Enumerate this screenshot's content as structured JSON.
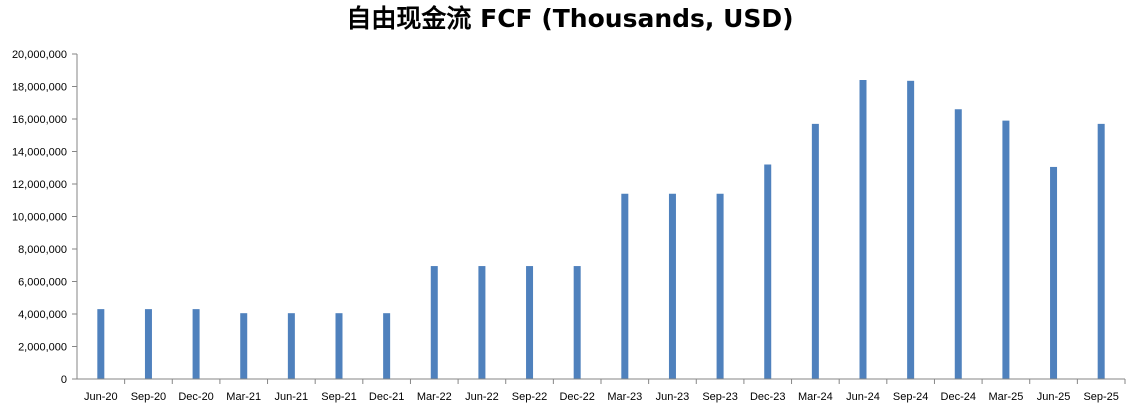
{
  "chart_data": {
    "type": "bar",
    "title": "自由现金流 FCF (Thousands, USD)",
    "xlabel": "",
    "ylabel": "",
    "categories": [
      "Jun-20",
      "Sep-20",
      "Dec-20",
      "Mar-21",
      "Jun-21",
      "Sep-21",
      "Dec-21",
      "Mar-22",
      "Jun-22",
      "Sep-22",
      "Dec-22",
      "Mar-23",
      "Jun-23",
      "Sep-23",
      "Dec-23",
      "Mar-24",
      "Jun-24",
      "Sep-24",
      "Dec-24",
      "Mar-25",
      "Jun-25",
      "Sep-25"
    ],
    "values": [
      4300000,
      4300000,
      4300000,
      4050000,
      4050000,
      4050000,
      4050000,
      6950000,
      6950000,
      6950000,
      6950000,
      11400000,
      11400000,
      11400000,
      13200000,
      15700000,
      18400000,
      18350000,
      16600000,
      15900000,
      13050000,
      15700000
    ],
    "ylim": [
      0,
      20000000
    ],
    "yticks": [
      "0",
      "2,000,000",
      "4,000,000",
      "6,000,000",
      "8,000,000",
      "10,000,000",
      "12,000,000",
      "14,000,000",
      "16,000,000",
      "18,000,000",
      "20,000,000"
    ],
    "ytick_values": [
      0,
      2000000,
      4000000,
      6000000,
      8000000,
      10000000,
      12000000,
      14000000,
      16000000,
      18000000,
      20000000
    ],
    "grid": false,
    "legend": "none",
    "bar_color": "#4F81BD",
    "axis_color": "#868686"
  }
}
